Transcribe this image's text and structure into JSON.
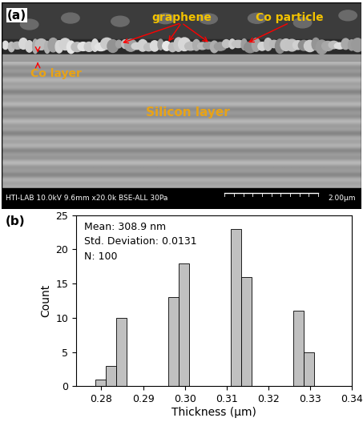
{
  "micrograph": {
    "panel_label": "(a)",
    "labels": {
      "graphene": "graphene",
      "co_particle": "Co particle",
      "co_layer": "Co layer",
      "silicon_layer": "Silicon layer"
    },
    "info_bar": "HTI-LAB 10.0kV 9.6mm x20.0k BSE-ALL 30Pa",
    "scale_bar": "2.00µm"
  },
  "chart_data": {
    "type": "histogram",
    "panel_label": "(b)",
    "x_label": "Thickness (µm)",
    "y_label": "Count",
    "annotations": [
      "Mean: 308.9 nm",
      "Std. Deviation: 0.0131",
      "N: 100"
    ],
    "bins": [
      0.2785,
      0.281,
      0.2835,
      0.286,
      0.2885,
      0.291,
      0.2935,
      0.296,
      0.2985,
      0.301,
      0.3035,
      0.306,
      0.3085,
      0.311,
      0.3135,
      0.316,
      0.3185,
      0.321,
      0.3235,
      0.326,
      0.3285,
      0.331
    ],
    "counts": [
      1,
      3,
      10,
      0,
      0,
      0,
      0,
      13,
      18,
      0,
      0,
      0,
      0,
      23,
      16,
      0,
      0,
      0,
      0,
      11,
      5
    ],
    "color": "#c0c0c0",
    "xlim": [
      0.274,
      0.34
    ],
    "xticks": [
      0.28,
      0.29,
      {
        "value": 0.3,
        "label": "0.30"
      },
      0.31,
      0.32,
      0.33,
      0.34
    ],
    "ylim": [
      0,
      25
    ],
    "yticks": [
      0,
      5,
      10,
      15,
      20,
      25
    ],
    "grid": false
  }
}
